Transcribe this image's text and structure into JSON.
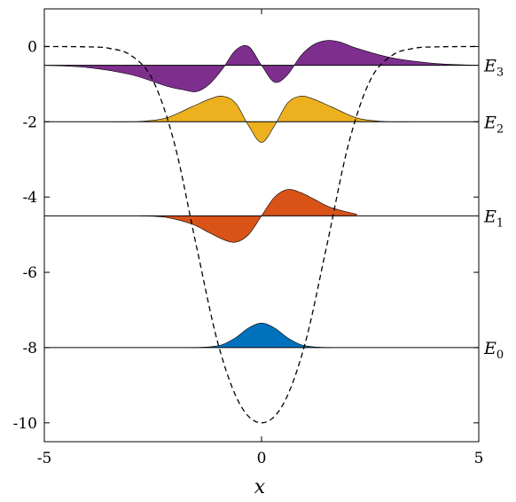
{
  "chart_data": {
    "type": "area",
    "title": "",
    "xlabel": "x",
    "ylabel": "",
    "xlim": [
      -5,
      5
    ],
    "ylim": [
      -10.5,
      1
    ],
    "xticks": [
      "-5",
      "0",
      "5"
    ],
    "yticks": [
      "0",
      "-2",
      "-4",
      "-6",
      "-8",
      "-10"
    ],
    "grid": false,
    "potential": {
      "style": "dashed",
      "x": [
        -5,
        -4,
        -3.5,
        -3,
        -2.5,
        -2,
        -1.5,
        -1,
        -0.5,
        0,
        0.5,
        1,
        1.5,
        2,
        2.5,
        3,
        3.5,
        4,
        5
      ],
      "y": [
        0,
        -0.01,
        -0.05,
        -0.24,
        -0.9,
        -2.6,
        -5.3,
        -7.9,
        -9.5,
        -10,
        -9.5,
        -7.9,
        -5.3,
        -2.6,
        -0.9,
        -0.24,
        -0.05,
        -0.01,
        0
      ]
    },
    "levels": [
      {
        "name": "E",
        "sub": "0",
        "energy": -8,
        "color": "#0072BD",
        "x": [
          -1.6,
          -1.2,
          -0.9,
          -0.6,
          -0.3,
          0,
          0.3,
          0.6,
          0.9,
          1.2,
          1.6
        ],
        "y": [
          -8.0,
          -7.98,
          -7.92,
          -7.74,
          -7.48,
          -7.35,
          -7.48,
          -7.74,
          -7.92,
          -7.98,
          -8.0
        ]
      },
      {
        "name": "E",
        "sub": "1",
        "energy": -4.5,
        "color": "#D95319",
        "x": [
          -2.8,
          -2.2,
          -1.6,
          -1.2,
          -0.9,
          -0.6,
          -0.3,
          0,
          0.3,
          0.6,
          0.9,
          1.2,
          1.6,
          2.2
        ],
        "y": [
          -4.5,
          -4.54,
          -4.72,
          -4.95,
          -5.12,
          -5.2,
          -5.0,
          -4.5,
          -4.0,
          -3.8,
          -3.88,
          -4.05,
          -4.28,
          -4.46
        ]
      },
      {
        "name": "E",
        "sub": "2",
        "energy": -2,
        "color": "#EDB120",
        "x": [
          -3.4,
          -2.8,
          -2.2,
          -1.6,
          -1.2,
          -0.9,
          -0.6,
          -0.3,
          0,
          0.3,
          0.6,
          0.9,
          1.2,
          1.6,
          2.2,
          2.8,
          3.4
        ],
        "y": [
          -2.0,
          -1.99,
          -1.9,
          -1.6,
          -1.4,
          -1.32,
          -1.5,
          -2.1,
          -2.55,
          -2.1,
          -1.5,
          -1.32,
          -1.4,
          -1.6,
          -1.9,
          -1.99,
          -2.0
        ]
      },
      {
        "name": "E",
        "sub": "3",
        "energy": -0.5,
        "color": "#7E2F8E",
        "x": [
          -5,
          -4,
          -3,
          -2.2,
          -1.8,
          -1.5,
          -1.2,
          -0.9,
          -0.6,
          -0.3,
          0,
          0.3,
          0.6,
          0.9,
          1.2,
          1.5,
          1.8,
          2.2,
          3,
          4,
          5
        ],
        "y": [
          -0.5,
          -0.56,
          -0.75,
          -1.05,
          -1.15,
          -1.2,
          -1.0,
          -0.6,
          -0.1,
          0.0,
          -0.5,
          -0.95,
          -0.75,
          -0.25,
          0.05,
          0.16,
          0.12,
          -0.05,
          -0.3,
          -0.45,
          -0.5
        ]
      }
    ]
  }
}
